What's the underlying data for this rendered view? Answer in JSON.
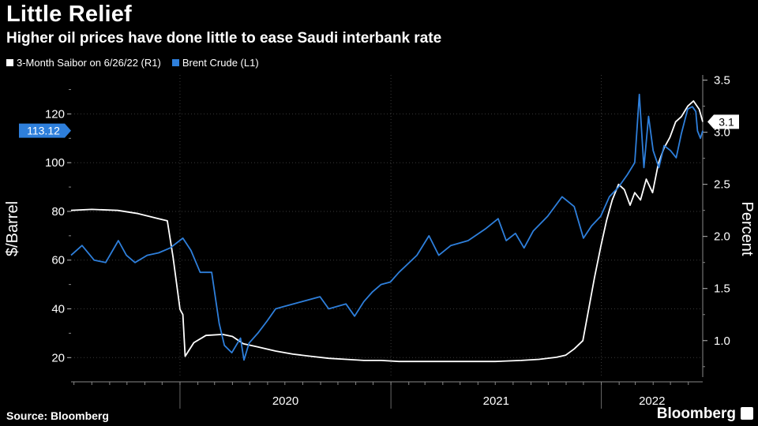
{
  "header": {
    "title": "Little Relief",
    "subtitle": "Higher oil prices have done little to ease Saudi interbank rate"
  },
  "legend": [
    {
      "label": "3-Month Saibor on 6/26/22 (R1)",
      "color": "#ffffff"
    },
    {
      "label": "Brent Crude (L1)",
      "color": "#2e7fdb"
    }
  ],
  "footer": {
    "source": "Source: Bloomberg",
    "brand": "Bloomberg"
  },
  "chart_data": {
    "type": "line",
    "title": "Little Relief",
    "subtitle": "Higher oil prices have done little to ease Saudi interbank rate",
    "x_axis": {
      "range": [
        "2019-06-26",
        "2022-06-26"
      ],
      "tick_labels": [
        "2020",
        "2021",
        "2022"
      ],
      "tick_dates": [
        "2020-01-01",
        "2021-01-01",
        "2022-01-01"
      ]
    },
    "y_left": {
      "label": "$/Barrel",
      "range": [
        12,
        136
      ],
      "ticks": [
        20,
        40,
        60,
        80,
        100,
        120
      ]
    },
    "y_right": {
      "label": "Percent",
      "range": [
        0.65,
        3.55
      ],
      "ticks": [
        1.0,
        1.5,
        2.0,
        2.5,
        3.0,
        3.5
      ]
    },
    "grid": true,
    "series": [
      {
        "name": "3-Month Saibor on 6/26/22 (R1)",
        "axis": "right",
        "color": "#ffffff",
        "last_value_label": "3.1",
        "last_value": 3.1,
        "points": [
          [
            "2019-06-26",
            2.25
          ],
          [
            "2019-08-01",
            2.26
          ],
          [
            "2019-09-15",
            2.25
          ],
          [
            "2019-10-20",
            2.22
          ],
          [
            "2019-11-25",
            2.17
          ],
          [
            "2019-12-10",
            2.15
          ],
          [
            "2019-12-20",
            1.8
          ],
          [
            "2020-01-01",
            1.3
          ],
          [
            "2020-01-06",
            1.25
          ],
          [
            "2020-01-10",
            0.85
          ],
          [
            "2020-01-25",
            0.98
          ],
          [
            "2020-02-15",
            1.05
          ],
          [
            "2020-03-15",
            1.06
          ],
          [
            "2020-04-01",
            1.04
          ],
          [
            "2020-04-20",
            0.97
          ],
          [
            "2020-05-15",
            0.94
          ],
          [
            "2020-06-15",
            0.9
          ],
          [
            "2020-07-15",
            0.87
          ],
          [
            "2020-08-15",
            0.85
          ],
          [
            "2020-09-15",
            0.83
          ],
          [
            "2020-10-15",
            0.82
          ],
          [
            "2020-11-15",
            0.81
          ],
          [
            "2020-12-15",
            0.81
          ],
          [
            "2021-01-15",
            0.8
          ],
          [
            "2021-03-01",
            0.8
          ],
          [
            "2021-05-01",
            0.8
          ],
          [
            "2021-07-01",
            0.8
          ],
          [
            "2021-08-15",
            0.81
          ],
          [
            "2021-09-15",
            0.82
          ],
          [
            "2021-10-15",
            0.84
          ],
          [
            "2021-10-31",
            0.86
          ],
          [
            "2021-11-15",
            0.92
          ],
          [
            "2021-11-30",
            1.0
          ],
          [
            "2021-12-10",
            1.3
          ],
          [
            "2021-12-20",
            1.6
          ],
          [
            "2021-12-31",
            1.9
          ],
          [
            "2022-01-10",
            2.15
          ],
          [
            "2022-01-20",
            2.35
          ],
          [
            "2022-01-31",
            2.5
          ],
          [
            "2022-02-10",
            2.45
          ],
          [
            "2022-02-20",
            2.3
          ],
          [
            "2022-02-28",
            2.42
          ],
          [
            "2022-03-10",
            2.35
          ],
          [
            "2022-03-20",
            2.55
          ],
          [
            "2022-03-31",
            2.42
          ],
          [
            "2022-04-10",
            2.7
          ],
          [
            "2022-04-20",
            2.85
          ],
          [
            "2022-04-30",
            2.95
          ],
          [
            "2022-05-10",
            3.1
          ],
          [
            "2022-05-20",
            3.15
          ],
          [
            "2022-05-31",
            3.25
          ],
          [
            "2022-06-10",
            3.3
          ],
          [
            "2022-06-20",
            3.22
          ],
          [
            "2022-06-26",
            3.1
          ]
        ]
      },
      {
        "name": "Brent Crude (L1)",
        "axis": "left",
        "color": "#2e7fdb",
        "last_value_label": "113.12",
        "last_value": 113.12,
        "points": [
          [
            "2019-06-26",
            62
          ],
          [
            "2019-07-15",
            66
          ],
          [
            "2019-08-05",
            60
          ],
          [
            "2019-08-25",
            59
          ],
          [
            "2019-09-16",
            68
          ],
          [
            "2019-09-30",
            62
          ],
          [
            "2019-10-15",
            59
          ],
          [
            "2019-11-05",
            62
          ],
          [
            "2019-11-25",
            63
          ],
          [
            "2019-12-15",
            65
          ],
          [
            "2020-01-06",
            69
          ],
          [
            "2020-01-20",
            64
          ],
          [
            "2020-02-05",
            55
          ],
          [
            "2020-02-25",
            55
          ],
          [
            "2020-03-09",
            34
          ],
          [
            "2020-03-18",
            25
          ],
          [
            "2020-03-31",
            22
          ],
          [
            "2020-04-15",
            28
          ],
          [
            "2020-04-21",
            19
          ],
          [
            "2020-04-30",
            26
          ],
          [
            "2020-05-15",
            30
          ],
          [
            "2020-05-31",
            35
          ],
          [
            "2020-06-15",
            40
          ],
          [
            "2020-06-30",
            41
          ],
          [
            "2020-07-31",
            43
          ],
          [
            "2020-08-31",
            45
          ],
          [
            "2020-09-15",
            40
          ],
          [
            "2020-09-30",
            41
          ],
          [
            "2020-10-15",
            42
          ],
          [
            "2020-10-30",
            37
          ],
          [
            "2020-11-15",
            43
          ],
          [
            "2020-11-30",
            47
          ],
          [
            "2020-12-15",
            50
          ],
          [
            "2020-12-31",
            51
          ],
          [
            "2021-01-15",
            55
          ],
          [
            "2021-02-15",
            62
          ],
          [
            "2021-03-08",
            70
          ],
          [
            "2021-03-25",
            62
          ],
          [
            "2021-04-15",
            66
          ],
          [
            "2021-05-15",
            68
          ],
          [
            "2021-06-15",
            73
          ],
          [
            "2021-07-06",
            77
          ],
          [
            "2021-07-20",
            68
          ],
          [
            "2021-08-05",
            71
          ],
          [
            "2021-08-20",
            65
          ],
          [
            "2021-09-05",
            72
          ],
          [
            "2021-09-30",
            78
          ],
          [
            "2021-10-25",
            86
          ],
          [
            "2021-11-15",
            82
          ],
          [
            "2021-12-01",
            69
          ],
          [
            "2021-12-15",
            74
          ],
          [
            "2021-12-31",
            78
          ],
          [
            "2022-01-15",
            86
          ],
          [
            "2022-01-31",
            90
          ],
          [
            "2022-02-15",
            95
          ],
          [
            "2022-02-28",
            100
          ],
          [
            "2022-03-08",
            128
          ],
          [
            "2022-03-16",
            98
          ],
          [
            "2022-03-24",
            119
          ],
          [
            "2022-04-01",
            105
          ],
          [
            "2022-04-11",
            98
          ],
          [
            "2022-04-20",
            107
          ],
          [
            "2022-05-01",
            105
          ],
          [
            "2022-05-11",
            102
          ],
          [
            "2022-05-20",
            112
          ],
          [
            "2022-05-31",
            122
          ],
          [
            "2022-06-08",
            123
          ],
          [
            "2022-06-14",
            121
          ],
          [
            "2022-06-17",
            113
          ],
          [
            "2022-06-22",
            110
          ],
          [
            "2022-06-26",
            113.12
          ]
        ]
      }
    ]
  }
}
